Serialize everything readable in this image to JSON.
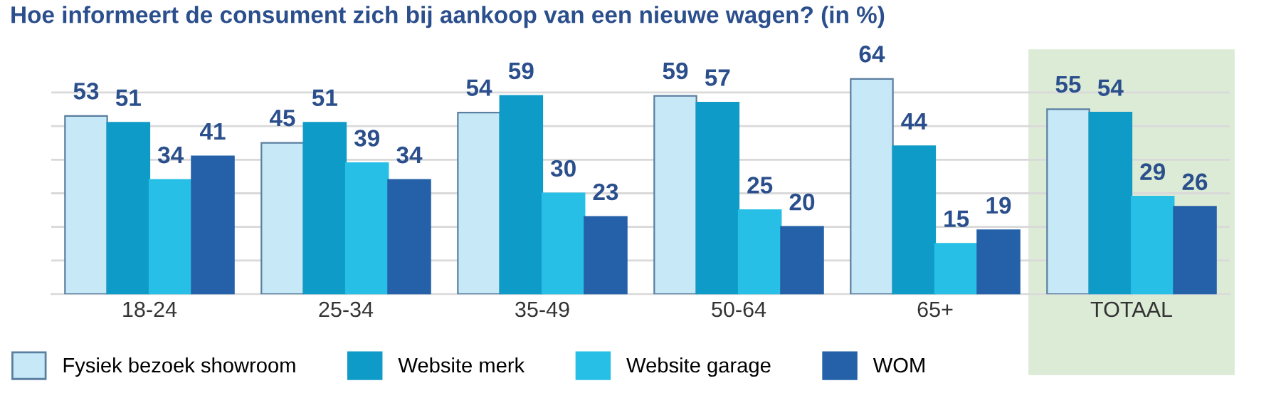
{
  "chart_data": {
    "type": "bar",
    "title": "Hoe informeert de consument zich bij aankoop van een nieuwe wagen? (in %)",
    "categories": [
      "18-24",
      "25-34",
      "35-49",
      "50-64",
      "65+",
      "TOTAAL"
    ],
    "series": [
      {
        "name": "Fysiek bezoek showroom",
        "color": "#c6e8f7",
        "values": [
          53,
          45,
          54,
          59,
          64,
          55
        ]
      },
      {
        "name": "Website merk",
        "color": "#0f9bc8",
        "values": [
          51,
          51,
          59,
          57,
          44,
          54
        ]
      },
      {
        "name": "Website garage",
        "color": "#27bfe6",
        "values": [
          34,
          39,
          30,
          25,
          15,
          29
        ]
      },
      {
        "name": "WOM",
        "color": "#2561a8",
        "values": [
          41,
          34,
          23,
          20,
          19,
          26
        ]
      }
    ],
    "yticks": [
      {
        "value": 0,
        "label": null
      },
      {
        "value": 10,
        "label": null
      },
      {
        "value": 20,
        "label": null
      },
      {
        "value": 30,
        "label": null
      },
      {
        "value": 40,
        "label": null
      },
      {
        "value": 50,
        "label": null
      },
      {
        "value": 60,
        "label": null
      }
    ],
    "tick_labels": "x",
    "grid": "y",
    "data_labels": true,
    "legend": "bottom left",
    "bands": [
      {
        "axis": "x",
        "from": "TOTAAL",
        "to": "TOTAAL",
        "color": "#dcebd6"
      }
    ]
  }
}
